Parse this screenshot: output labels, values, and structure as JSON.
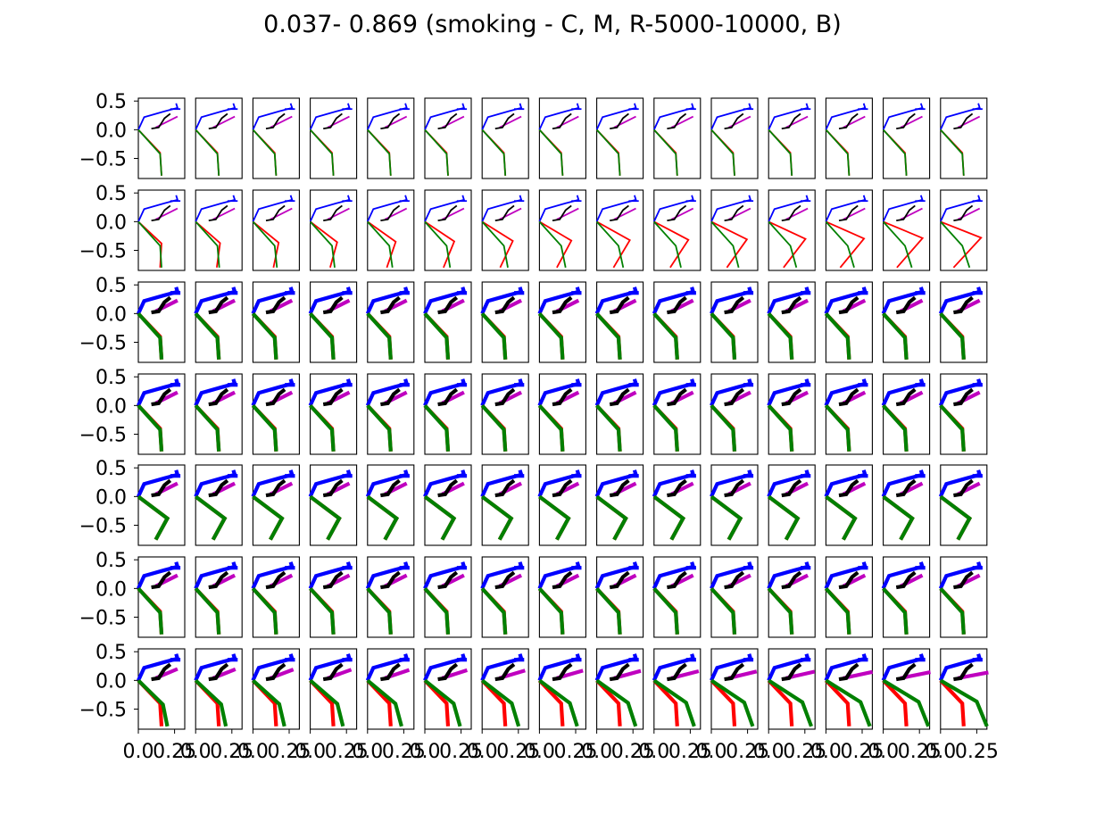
{
  "figure": {
    "title": "0.037- 0.869 (smoking - C, M, R-5000-10000, B)",
    "rows": 7,
    "cols": 15,
    "y_ticks": [
      "0.5",
      "0.0",
      "−0.5"
    ],
    "x_ticks_text": [
      "0.0",
      "0.25"
    ],
    "colors": {
      "blue": "#0000ff",
      "magenta": "#bf00bf",
      "black": "#000000",
      "red": "#ff0000",
      "green": "#008000"
    }
  },
  "chart_data": {
    "type": "line",
    "description_units": "skeleton joint coordinates per subplot",
    "xlim": [
      0.0,
      0.32
    ],
    "ylim": [
      -0.85,
      0.55
    ],
    "yticks": [
      0.5,
      0.0,
      -0.5
    ],
    "xticks": [
      0.0,
      0.25
    ],
    "series_colors": [
      "blue",
      "magenta",
      "black",
      "red",
      "green"
    ],
    "rows": [
      {
        "row": 1,
        "style": "thin",
        "leg_variation": "none"
      },
      {
        "row": 2,
        "style": "thin",
        "leg_variation": "red-knee-forward-increasing"
      },
      {
        "row": 3,
        "style": "thick",
        "leg_variation": "none"
      },
      {
        "row": 4,
        "style": "thick",
        "leg_variation": "none"
      },
      {
        "row": 5,
        "style": "thick",
        "leg_variation": "green-knee-forward"
      },
      {
        "row": 6,
        "style": "thick",
        "leg_variation": "none"
      },
      {
        "row": 7,
        "style": "thick",
        "leg_variation": "green-foot-forward-increasing"
      }
    ]
  }
}
